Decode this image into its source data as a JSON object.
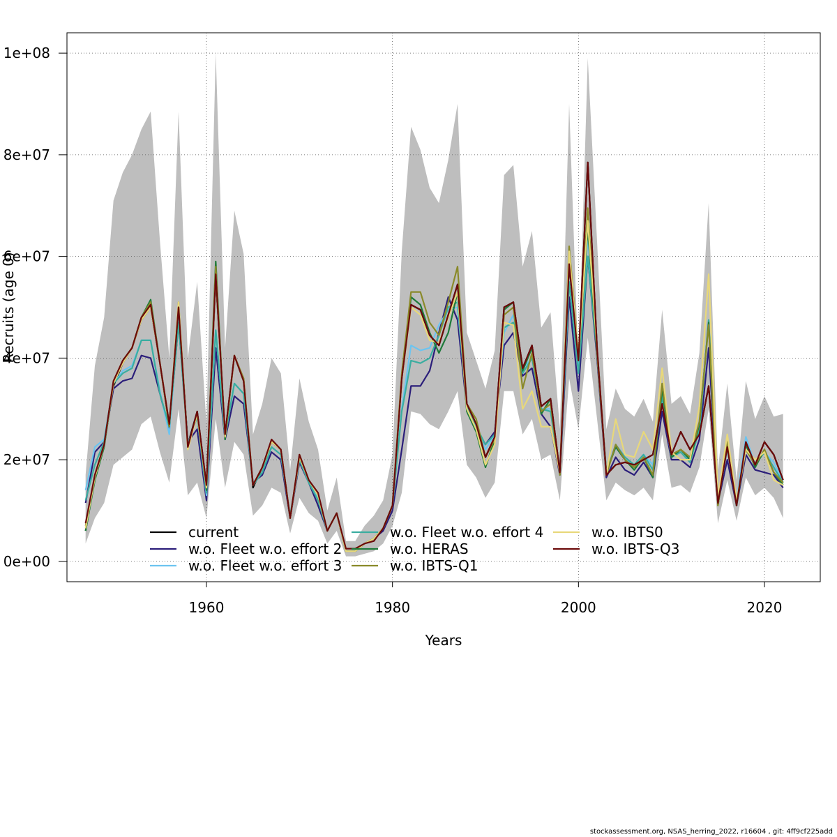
{
  "chart_data": {
    "type": "line",
    "title": "",
    "xlabel": "Years",
    "ylabel": "Recruits (age 0)",
    "xlim": [
      1945,
      2026
    ],
    "ylim": [
      -4000000,
      104000000
    ],
    "x_ticks": [
      1960,
      1980,
      2000,
      2020
    ],
    "y_ticks": [
      0,
      20000000,
      40000000,
      60000000,
      80000000,
      100000000
    ],
    "y_tick_labels": [
      "0e+00",
      "2e+07",
      "4e+07",
      "6e+07",
      "8e+07",
      "1e+08"
    ],
    "grid": true,
    "legend_position": "bottom-left",
    "x": [
      1947,
      1948,
      1949,
      1950,
      1951,
      1952,
      1953,
      1954,
      1955,
      1956,
      1957,
      1958,
      1959,
      1960,
      1961,
      1962,
      1963,
      1964,
      1965,
      1966,
      1967,
      1968,
      1969,
      1970,
      1971,
      1972,
      1973,
      1974,
      1975,
      1976,
      1977,
      1978,
      1979,
      1980,
      1981,
      1982,
      1983,
      1984,
      1985,
      1986,
      1987,
      1988,
      1989,
      1990,
      1991,
      1992,
      1993,
      1994,
      1995,
      1996,
      1997,
      1998,
      1999,
      2000,
      2001,
      2002,
      2003,
      2004,
      2005,
      2006,
      2007,
      2008,
      2009,
      2010,
      2011,
      2012,
      2013,
      2014,
      2015,
      2016,
      2017,
      2018,
      2019,
      2020,
      2021,
      2022
    ],
    "confidence_band": {
      "color": "#bebebe",
      "upper": [
        17,
        38.5,
        48,
        71,
        76.5,
        80,
        85,
        88.5,
        63,
        40,
        88.5,
        40,
        55,
        27,
        100,
        42,
        69,
        60.5,
        25,
        31,
        40,
        37,
        18,
        36,
        27.5,
        22,
        10,
        16.5,
        4,
        4,
        7,
        9,
        12,
        21,
        61,
        85.5,
        81,
        73.5,
        70.5,
        79,
        90,
        45,
        39.5,
        34,
        41.5,
        76,
        78,
        58,
        65,
        46,
        49,
        26,
        90,
        38,
        99,
        63,
        26,
        34,
        30,
        28.5,
        32,
        27.5,
        49.5,
        31,
        32.5,
        29,
        41,
        70.5,
        18,
        35,
        16,
        35.5,
        28,
        32.5,
        28.5,
        29
      ],
      "lower": [
        3.5,
        8.5,
        11.5,
        19,
        20.5,
        22,
        27,
        28.5,
        21.5,
        15.5,
        30,
        13,
        15.5,
        8.5,
        28,
        14.5,
        23.5,
        21,
        9,
        11,
        14.5,
        13.5,
        5.5,
        12.5,
        9.5,
        8,
        3.5,
        6,
        1,
        1,
        1.5,
        2,
        3.5,
        7,
        13.5,
        29.5,
        29,
        27,
        26,
        29.5,
        33.5,
        19,
        16.5,
        12.5,
        15.5,
        33.5,
        33.5,
        25,
        28,
        20,
        21,
        12,
        36,
        26,
        44,
        28,
        12,
        15.5,
        14,
        13,
        14.5,
        12,
        25,
        14.5,
        15,
        13.5,
        18.5,
        30,
        7.5,
        16,
        8,
        16.5,
        13,
        14.5,
        12.5,
        8.5
      ]
    },
    "series": [
      {
        "name": "current",
        "color": "#000000",
        "dashed": false,
        "values": [
          6,
          16.5,
          23,
          34.5,
          39,
          42,
          47.5,
          50,
          39,
          27,
          50,
          23,
          29.5,
          15,
          56,
          25,
          40.5,
          35.5,
          14.5,
          18.5,
          23.5,
          22,
          8.5,
          20.5,
          16,
          13,
          6,
          9.5,
          2,
          2,
          3.5,
          4.5,
          6.5,
          11,
          36,
          50.5,
          49.5,
          44.5,
          42.5,
          48.5,
          54.5,
          31,
          27,
          20.5,
          24.5,
          50,
          51,
          38,
          42.5,
          30.5,
          32,
          17.5,
          58.5,
          39.5,
          78.5,
          42,
          17,
          19,
          19.5,
          19,
          20,
          21,
          31,
          21,
          25.5,
          22,
          25,
          34.5,
          11.5,
          22.5,
          11,
          23.5,
          19,
          23.5,
          21,
          16
        ]
      },
      {
        "name": "w.o. Fleet w.o. effort 2",
        "color": "#2b1e7a",
        "dashed": false,
        "values": [
          11.5,
          21.5,
          23.5,
          34,
          35.5,
          36,
          40.5,
          40,
          33,
          26,
          47,
          23.5,
          26,
          12,
          42,
          24,
          32.5,
          31,
          15.5,
          17,
          21.5,
          20,
          8.5,
          19.5,
          15.5,
          11,
          6,
          9.5,
          2,
          2,
          3.5,
          4.5,
          6,
          10,
          22,
          34.5,
          34.5,
          37.5,
          45,
          52,
          47.5,
          30,
          26,
          23,
          25.5,
          42.5,
          45,
          36.5,
          38,
          29,
          26.5,
          17,
          52,
          33.5,
          60,
          40,
          16.5,
          20.5,
          18,
          17,
          19.5,
          16.5,
          29.5,
          20,
          20,
          18.5,
          24,
          42,
          11.5,
          20,
          11,
          21,
          18,
          17.5,
          17,
          14.5
        ]
      },
      {
        "name": "w.o. Fleet w.o. effort 3",
        "color": "#6cc4f0",
        "dashed": false,
        "values": [
          14,
          22.5,
          24,
          35,
          37.5,
          38.5,
          43.5,
          43.5,
          33.5,
          25,
          48,
          23,
          28.5,
          13,
          45.5,
          24.5,
          35,
          33,
          15,
          17.5,
          22.5,
          21,
          9,
          20,
          15.5,
          12.5,
          6,
          9.5,
          2,
          2,
          3.5,
          4.5,
          6.5,
          11,
          30,
          42.5,
          41.5,
          42,
          46.5,
          49.5,
          50,
          31,
          26.5,
          22,
          25,
          45,
          48.5,
          38,
          40,
          30,
          30,
          18,
          55,
          37.5,
          64,
          41,
          17.5,
          22.5,
          20,
          19,
          21,
          19,
          32,
          20.5,
          22,
          20,
          25.5,
          47.5,
          12,
          22,
          12,
          24.5,
          19,
          21.5,
          19.5,
          15.5
        ]
      },
      {
        "name": "w.o. Fleet w.o. effort 4",
        "color": "#3aada0",
        "dashed": false,
        "values": [
          12,
          19,
          23.5,
          35,
          37,
          38,
          43.5,
          43.5,
          33,
          26.5,
          47,
          23,
          28.5,
          13.5,
          45.5,
          24.5,
          35,
          33,
          15,
          17.5,
          22.5,
          21,
          9,
          20,
          15.5,
          12,
          6,
          9.5,
          2,
          2,
          3.5,
          4.5,
          6.5,
          11,
          29.5,
          39.5,
          39,
          40,
          44.5,
          50,
          51,
          30.5,
          26.5,
          23,
          25,
          46,
          47,
          37,
          40,
          30,
          29.5,
          17.5,
          55,
          37,
          60,
          41,
          17.5,
          23,
          20.5,
          19,
          21,
          18,
          32.5,
          20.5,
          21.5,
          19.5,
          26,
          47.5,
          11.5,
          22.5,
          11,
          23.5,
          19,
          21.5,
          18.5,
          15.5
        ]
      },
      {
        "name": "w.o. HERAS",
        "color": "#1e7a3a",
        "dashed": false,
        "values": [
          6,
          16,
          22.5,
          35,
          39.5,
          42,
          48,
          51.5,
          39,
          26.5,
          50,
          22.5,
          29,
          14,
          59,
          24,
          40.5,
          35.5,
          15,
          18.5,
          23.5,
          22,
          8.5,
          20.5,
          16,
          13,
          6,
          9.5,
          2,
          2,
          3.5,
          4.5,
          6.5,
          11,
          36,
          52,
          50.5,
          45,
          41,
          45,
          53,
          29.5,
          25.5,
          18.5,
          24,
          49.5,
          51,
          37.5,
          42,
          29,
          32,
          17,
          60,
          40,
          65.5,
          41,
          17.5,
          22.5,
          20,
          18,
          20.5,
          16.5,
          34,
          20.5,
          22,
          20,
          27,
          47,
          11,
          23.5,
          11,
          23,
          18.5,
          22,
          17.5,
          15
        ]
      },
      {
        "name": "w.o. IBTS-Q1",
        "color": "#8a8a2a",
        "dashed": false,
        "values": [
          7,
          17,
          23,
          35.5,
          39.5,
          42,
          48,
          51,
          39,
          26.5,
          51,
          22.5,
          29,
          14.5,
          58,
          24.5,
          40.5,
          36,
          15,
          18.5,
          23.5,
          22,
          8.5,
          21,
          16,
          13,
          6,
          9.5,
          2,
          2,
          3.5,
          4.5,
          6.5,
          11,
          37,
          53,
          53,
          47,
          44.5,
          51,
          58,
          31,
          28,
          20.5,
          24,
          48.5,
          50,
          34,
          41,
          29.5,
          31,
          17,
          62,
          40.5,
          69.5,
          41,
          17,
          23,
          20,
          18.5,
          20.5,
          17,
          35,
          21,
          22,
          20.5,
          27.5,
          46.5,
          11,
          23.5,
          11.5,
          22,
          19,
          22,
          17.5,
          15.5
        ]
      },
      {
        "name": "w.o. IBTS0",
        "color": "#e8d87a",
        "dashed": false,
        "values": [
          6.5,
          16.5,
          23,
          35,
          39,
          42,
          47.5,
          50,
          39,
          27,
          51,
          22,
          29,
          14.5,
          56.5,
          24.5,
          40.5,
          35.5,
          15,
          18.5,
          23.5,
          22,
          8.5,
          20.5,
          16,
          13,
          6,
          9.5,
          2,
          2,
          3.5,
          4.5,
          6.5,
          11,
          36,
          50,
          48.5,
          43.5,
          43,
          48,
          53,
          30,
          26,
          19,
          23,
          47,
          46.5,
          30,
          33.5,
          26.5,
          26.5,
          17.5,
          61,
          40,
          67,
          42,
          17,
          28,
          21,
          20.5,
          25.5,
          22,
          38,
          21.5,
          20,
          20,
          30.5,
          56.5,
          12.5,
          25,
          12,
          22,
          20,
          21.5,
          16,
          15
        ]
      },
      {
        "name": "w.o. IBTS-Q3",
        "color": "#6b0a0a",
        "dashed": false,
        "values": [
          7.5,
          17,
          23,
          35.5,
          39.5,
          42,
          48,
          50.5,
          39,
          27,
          50,
          22.5,
          29.5,
          15,
          56.5,
          25,
          40.5,
          35.5,
          15,
          18.5,
          24,
          22,
          8.5,
          21,
          16,
          13.5,
          6,
          9.5,
          2.5,
          2.5,
          3.5,
          4,
          6.5,
          11,
          36,
          50.5,
          49.5,
          44.5,
          42.5,
          48.5,
          54.5,
          31,
          27,
          20.5,
          24.5,
          50,
          51,
          38,
          42.5,
          30.5,
          32,
          17.5,
          58.5,
          39.5,
          78.5,
          42,
          17,
          19,
          19.5,
          19,
          20,
          21,
          31,
          21,
          25.5,
          22,
          25,
          34.5,
          11.5,
          22.5,
          11,
          23.5,
          19,
          23.5,
          21,
          16
        ]
      }
    ]
  },
  "footer": "stockassessment.org, NSAS_herring_2022, r16604 , git: 4ff9cf225add"
}
